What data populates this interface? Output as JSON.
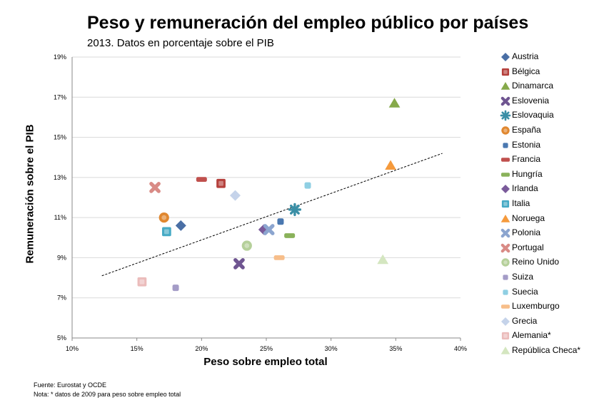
{
  "title": "Peso y remuneración del empleo público por países",
  "subtitle": "2013. Datos en porcentaje sobre el PIB",
  "footer": {
    "source": "Fuente: Eurostat y OCDE",
    "note": "Nota: * datos de 2009 para peso sobre empleo total"
  },
  "chart_data": {
    "type": "scatter",
    "title": "Peso y remuneración del empleo público por países",
    "subtitle": "2013. Datos en porcentaje sobre el PIB",
    "xlabel": "Peso sobre empleo total",
    "ylabel": "Remuneración  sobre el PIB",
    "xlim": [
      10,
      40
    ],
    "ylim": [
      5,
      19
    ],
    "x_ticks": [
      "10%",
      "15%",
      "20%",
      "25%",
      "30%",
      "35%",
      "40%"
    ],
    "y_ticks": [
      "5%",
      "7%",
      "9%",
      "11%",
      "13%",
      "15%",
      "17%",
      "19%"
    ],
    "grid": "horizontal",
    "legend_position": "right",
    "trendline": {
      "style": "dashed",
      "from": [
        12.3,
        8.1
      ],
      "to": [
        38.6,
        14.2
      ]
    },
    "series": [
      {
        "name": "Austria",
        "x": 18.4,
        "y": 10.6,
        "color": "#4a6fa5",
        "marker": "diamond"
      },
      {
        "name": "Bélgica",
        "x": 21.5,
        "y": 12.7,
        "color": "#b5403c",
        "marker": "square"
      },
      {
        "name": "Dinamarca",
        "x": 34.9,
        "y": 16.7,
        "color": "#86a94a",
        "marker": "triangle"
      },
      {
        "name": "Eslovenia",
        "x": 22.9,
        "y": 8.7,
        "color": "#6f5591",
        "marker": "x"
      },
      {
        "name": "Eslovaquia",
        "x": 27.2,
        "y": 11.4,
        "color": "#3a8fa6",
        "marker": "star"
      },
      {
        "name": "España",
        "x": 17.1,
        "y": 11.0,
        "color": "#e0872f",
        "marker": "circle"
      },
      {
        "name": "Estonia",
        "x": 26.1,
        "y": 10.8,
        "color": "#4a78b0",
        "marker": "smallsquare"
      },
      {
        "name": "Francia",
        "x": 20.0,
        "y": 12.9,
        "color": "#c0504d",
        "marker": "dash"
      },
      {
        "name": "Hungría",
        "x": 26.8,
        "y": 10.1,
        "color": "#8ab25a",
        "marker": "dash"
      },
      {
        "name": "Irlanda",
        "x": 24.8,
        "y": 10.4,
        "color": "#7a5a9a",
        "marker": "diamond"
      },
      {
        "name": "Italia",
        "x": 17.3,
        "y": 10.3,
        "color": "#46aac5",
        "marker": "square"
      },
      {
        "name": "Noruega",
        "x": 34.6,
        "y": 13.6,
        "color": "#f59a3c",
        "marker": "triangle"
      },
      {
        "name": "Polonia",
        "x": 25.2,
        "y": 10.4,
        "color": "#8ca5cf",
        "marker": "x"
      },
      {
        "name": "Portugal",
        "x": 16.4,
        "y": 12.5,
        "color": "#d98b86",
        "marker": "x"
      },
      {
        "name": "Reino Unido",
        "x": 23.5,
        "y": 9.6,
        "color": "#b5d09a",
        "marker": "circle"
      },
      {
        "name": "Suiza",
        "x": 18.0,
        "y": 7.5,
        "color": "#a49cc7",
        "marker": "smallsquare"
      },
      {
        "name": "Suecia",
        "x": 28.2,
        "y": 12.6,
        "color": "#8fcfe3",
        "marker": "smallsquare"
      },
      {
        "name": "Luxemburgo",
        "x": 26.0,
        "y": 9.0,
        "color": "#f7be8a",
        "marker": "dash"
      },
      {
        "name": "Grecia",
        "x": 22.6,
        "y": 12.1,
        "color": "#c5d3ea",
        "marker": "diamond"
      },
      {
        "name": "Alemania*",
        "x": 15.4,
        "y": 7.8,
        "color": "#ebbcbb",
        "marker": "square"
      },
      {
        "name": "República Checa*",
        "x": 34.0,
        "y": 8.9,
        "color": "#d4e6c0",
        "marker": "triangle"
      }
    ]
  }
}
